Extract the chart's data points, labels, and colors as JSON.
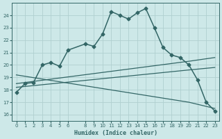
{
  "xlabel": "Humidex (Indice chaleur)",
  "bg_color": "#cde8e8",
  "grid_color": "#b0d0d0",
  "line_color": "#336666",
  "xlim": [
    -0.5,
    23.5
  ],
  "ylim": [
    15.5,
    25.0
  ],
  "xticks": [
    0,
    1,
    2,
    3,
    4,
    5,
    6,
    8,
    9,
    10,
    11,
    12,
    13,
    14,
    15,
    16,
    17,
    18,
    19,
    20,
    21,
    22,
    23
  ],
  "yticks": [
    16,
    17,
    18,
    19,
    20,
    21,
    22,
    23,
    24
  ],
  "series": [
    {
      "x": [
        0,
        1,
        2,
        3,
        4,
        5,
        6,
        8,
        9,
        10,
        11,
        12,
        13,
        14,
        15,
        16,
        17,
        18,
        19,
        20,
        21,
        22,
        23
      ],
      "y": [
        17.8,
        18.5,
        18.6,
        20.0,
        20.2,
        19.9,
        21.2,
        21.7,
        21.5,
        22.5,
        24.3,
        24.0,
        23.7,
        24.2,
        24.55,
        23.0,
        21.4,
        20.8,
        20.6,
        20.0,
        18.8,
        17.0,
        16.3
      ],
      "marker": "D",
      "markersize": 2.5,
      "linewidth": 1.1
    },
    {
      "x": [
        0,
        10,
        20,
        23
      ],
      "y": [
        18.5,
        19.4,
        20.3,
        20.6
      ],
      "marker": null,
      "linewidth": 0.9
    },
    {
      "x": [
        0,
        10,
        20,
        23
      ],
      "y": [
        18.2,
        18.9,
        19.6,
        19.8
      ],
      "marker": null,
      "linewidth": 0.9
    },
    {
      "x": [
        0,
        10,
        20,
        23
      ],
      "y": [
        19.2,
        18.1,
        17.0,
        16.5
      ],
      "marker": null,
      "linewidth": 0.9
    }
  ]
}
